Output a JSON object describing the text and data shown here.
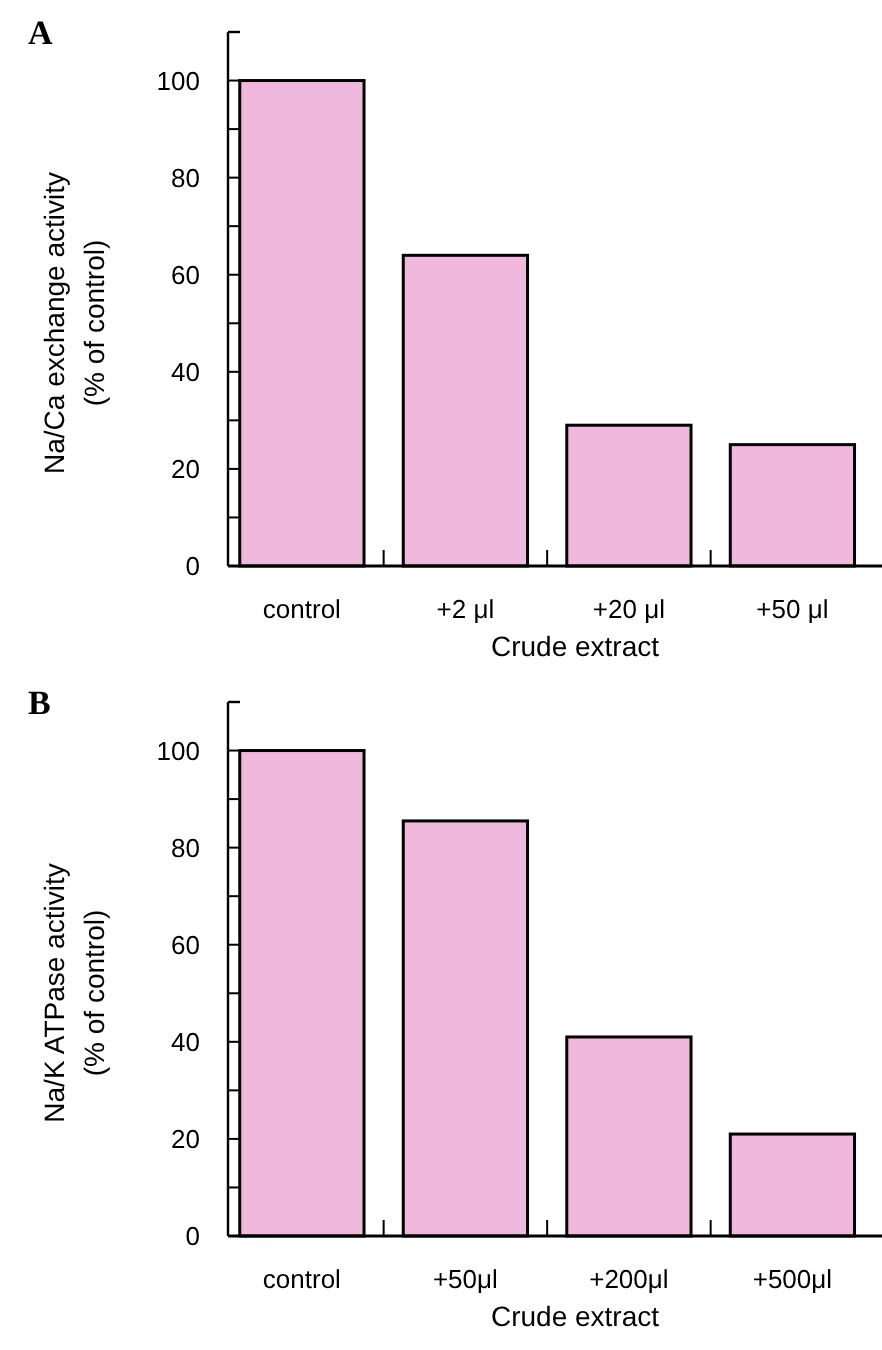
{
  "chart_data": [
    {
      "type": "bar",
      "title": "A",
      "xlabel": "Crude extract",
      "ylabel": "Na/Ca exchange activity\n(% of control)",
      "categories": [
        "control",
        "+2 μl",
        "+20 μl",
        "+50 μl"
      ],
      "values": [
        100,
        64,
        29,
        25
      ],
      "color": "#f0b8dc",
      "ylim": [
        0,
        110
      ],
      "yticks": [
        0,
        {
          "value": 10,
          "label": null
        },
        20,
        {
          "value": 30,
          "label": null
        },
        40,
        {
          "value": 50,
          "label": null
        },
        60,
        {
          "value": 70,
          "label": null
        },
        80,
        {
          "value": 90,
          "label": null
        },
        100
      ],
      "grid": false
    },
    {
      "type": "bar",
      "title": "B",
      "xlabel": "Crude extract",
      "ylabel": "Na/K ATPase activity\n(% of control)",
      "categories": [
        "control",
        "+50μl",
        "+200μl",
        "+500μl"
      ],
      "values": [
        100,
        85.5,
        41,
        21
      ],
      "color": "#f0b8dc",
      "ylim": [
        0,
        110
      ],
      "yticks": [
        0,
        {
          "value": 10,
          "label": null
        },
        20,
        {
          "value": 30,
          "label": null
        },
        40,
        {
          "value": 50,
          "label": null
        },
        60,
        {
          "value": 70,
          "label": null
        },
        80,
        {
          "value": 90,
          "label": null
        },
        100
      ],
      "grid": false
    }
  ]
}
